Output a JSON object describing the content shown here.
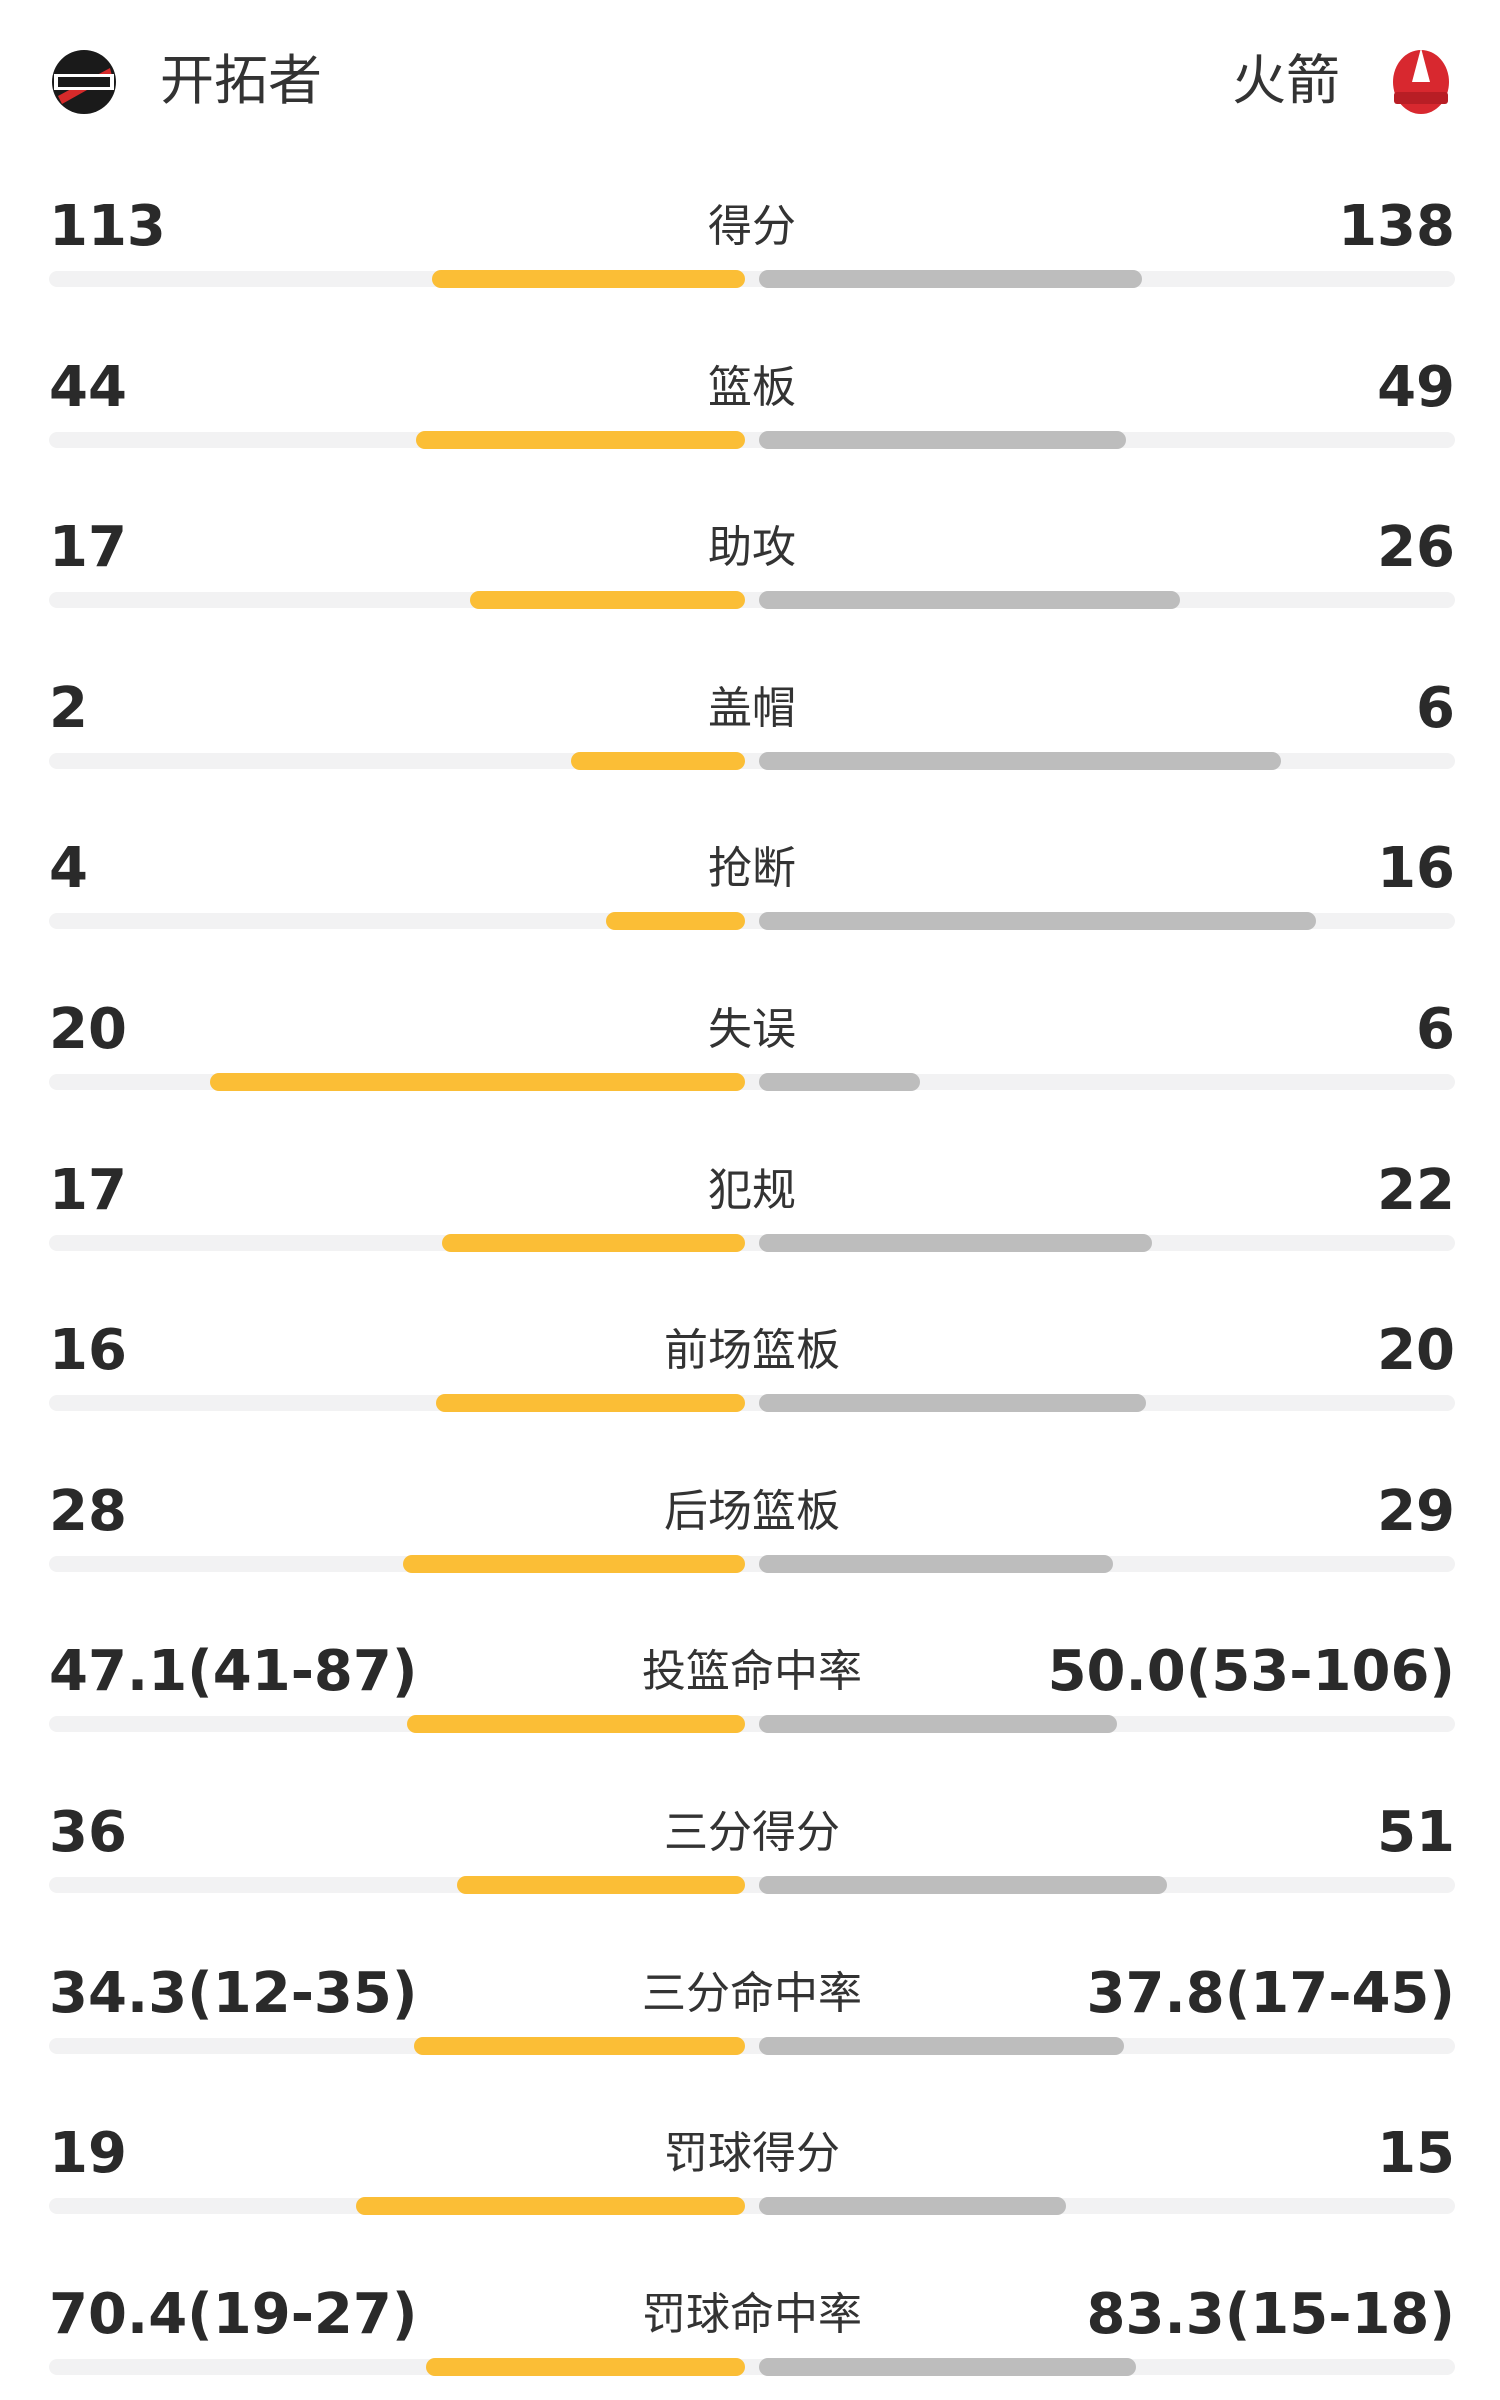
{
  "header": {
    "left_team": "开拓者",
    "right_team": "火箭"
  },
  "rows": [
    {
      "label": "得分",
      "left": 113,
      "right": 138
    },
    {
      "label": "篮板",
      "left": 44,
      "right": 49
    },
    {
      "label": "助攻",
      "left": 17,
      "right": 26
    },
    {
      "label": "盖帽",
      "left": 2,
      "right": 6
    },
    {
      "label": "抢断",
      "left": 4,
      "right": 16
    },
    {
      "label": "失误",
      "left": 20,
      "right": 6
    },
    {
      "label": "犯规",
      "left": 17,
      "right": 22
    },
    {
      "label": "前场篮板",
      "left": 16,
      "right": 20
    },
    {
      "label": "后场篮板",
      "left": 28,
      "right": 29
    },
    {
      "label": "投篮命中率",
      "left": 47.1,
      "left_label": "47.1(41-87)",
      "right": 50.0,
      "right_label": "50.0(53-106)"
    },
    {
      "label": "三分得分",
      "left": 36,
      "right": 51
    },
    {
      "label": "三分命中率",
      "left": 34.3,
      "left_label": "34.3(12-35)",
      "right": 37.8,
      "right_label": "37.8(17-45)"
    },
    {
      "label": "罚球得分",
      "left": 19,
      "right": 15
    },
    {
      "label": "罚球命中率",
      "left": 70.4,
      "left_label": "70.4(19-27)",
      "right": 83.3,
      "right_label": "83.3(15-18)"
    }
  ]
}
